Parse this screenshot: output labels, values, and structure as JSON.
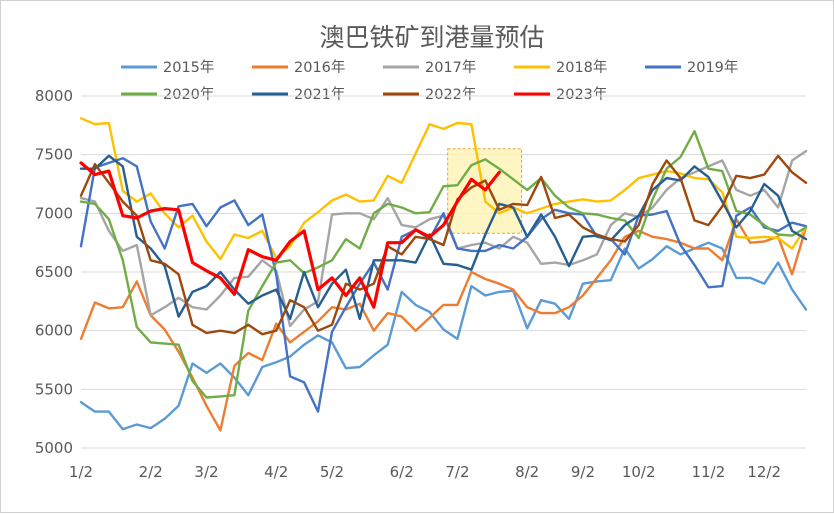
{
  "chart_data": {
    "type": "line",
    "title": "澳巴铁矿到港量预估",
    "xlabel": "",
    "ylabel": "",
    "ylim": [
      5000,
      8000
    ],
    "yticks": [
      5000,
      5500,
      6000,
      6500,
      7000,
      7500,
      8000
    ],
    "xlim": [
      1,
      53
    ],
    "x_ticks": [
      {
        "label": "1/2",
        "week": 1
      },
      {
        "label": "2/2",
        "week": 6
      },
      {
        "label": "3/2",
        "week": 10
      },
      {
        "label": "4/2",
        "week": 15
      },
      {
        "label": "5/2",
        "week": 19
      },
      {
        "label": "6/2",
        "week": 24
      },
      {
        "label": "7/2",
        "week": 28
      },
      {
        "label": "8/2",
        "week": 33
      },
      {
        "label": "9/2",
        "week": 37
      },
      {
        "label": "10/2",
        "week": 41
      },
      {
        "label": "11/2",
        "week": 46
      },
      {
        "label": "12/2",
        "week": 50
      }
    ],
    "grid": true,
    "legend_position": "top",
    "highlight": {
      "x": [
        27.3,
        32.6
      ],
      "y": [
        6830,
        7550
      ],
      "fill": "#fff3b0",
      "stroke": "#e8a33d"
    },
    "series": [
      {
        "name": "2015年",
        "color": "#5b9bd5",
        "values": [
          5390,
          5310,
          5310,
          5160,
          5200,
          5170,
          5250,
          5360,
          5720,
          5640,
          5720,
          5600,
          5450,
          5690,
          5730,
          5780,
          5880,
          5960,
          5900,
          5680,
          5690,
          5790,
          5880,
          6330,
          6220,
          6160,
          6010,
          5930,
          6380,
          6300,
          6330,
          6340,
          6020,
          6260,
          6230,
          6100,
          6400,
          6420,
          6430,
          6700,
          6530,
          6610,
          6720,
          6650,
          6700,
          6750,
          6700,
          6450,
          6450,
          6400,
          6580,
          6350,
          6180
        ]
      },
      {
        "name": "2016年",
        "color": "#ed7d31",
        "values": [
          5930,
          6240,
          6190,
          6200,
          6420,
          6130,
          6010,
          5820,
          5600,
          5360,
          5150,
          5700,
          5810,
          5750,
          6060,
          5900,
          5990,
          6080,
          6200,
          6180,
          6230,
          6000,
          6150,
          6120,
          6000,
          6110,
          6220,
          6220,
          6500,
          6440,
          6400,
          6350,
          6200,
          6150,
          6150,
          6200,
          6300,
          6450,
          6600,
          6800,
          6850,
          6800,
          6780,
          6750,
          6700,
          6700,
          6600,
          6950,
          6750,
          6760,
          6800,
          6480,
          6880
        ]
      },
      {
        "name": "2017年",
        "color": "#a5a5a5",
        "values": [
          7130,
          7100,
          6850,
          6680,
          6730,
          6130,
          6200,
          6280,
          6200,
          6180,
          6300,
          6450,
          6460,
          6600,
          6510,
          6040,
          6180,
          6250,
          6990,
          7000,
          7000,
          6950,
          7130,
          6900,
          6880,
          6950,
          6980,
          6700,
          6730,
          6750,
          6700,
          6800,
          6750,
          6570,
          6580,
          6560,
          6600,
          6650,
          6900,
          7000,
          6970,
          7050,
          7200,
          7300,
          7350,
          7400,
          7450,
          7200,
          7150,
          7200,
          7050,
          7450,
          7530
        ]
      },
      {
        "name": "2018年",
        "color": "#ffc000",
        "values": [
          7810,
          7760,
          7770,
          7190,
          7100,
          7170,
          7000,
          6880,
          6980,
          6760,
          6610,
          6820,
          6790,
          6850,
          6620,
          6720,
          6920,
          7010,
          7110,
          7160,
          7100,
          7110,
          7320,
          7260,
          7510,
          7760,
          7720,
          7770,
          7760,
          7100,
          7000,
          7050,
          7000,
          7040,
          7080,
          7100,
          7120,
          7100,
          7110,
          7200,
          7300,
          7330,
          7360,
          7340,
          7300,
          7290,
          7180,
          6800,
          6790,
          6800,
          6790,
          6700,
          6880
        ]
      },
      {
        "name": "2019年",
        "color": "#4472c4",
        "values": [
          6720,
          7390,
          7430,
          7470,
          7400,
          6930,
          6700,
          7060,
          7080,
          6890,
          7050,
          7110,
          6900,
          6990,
          6480,
          5610,
          5560,
          5310,
          5990,
          6200,
          6400,
          6580,
          6350,
          6800,
          6860,
          6780,
          7000,
          6700,
          6680,
          6680,
          6730,
          6700,
          6800,
          6950,
          7030,
          7000,
          6990,
          6800,
          6780,
          6650,
          6980,
          6990,
          7020,
          6730,
          6560,
          6370,
          6380,
          6980,
          7050,
          6880,
          6850,
          6920,
          6890
        ]
      },
      {
        "name": "2020年",
        "color": "#70ad47",
        "values": [
          7100,
          7080,
          6950,
          6600,
          6030,
          5900,
          5890,
          5880,
          5570,
          5430,
          5440,
          5450,
          6170,
          6380,
          6580,
          6600,
          6490,
          6540,
          6600,
          6780,
          6700,
          7000,
          7080,
          7050,
          7000,
          7010,
          7230,
          7240,
          7410,
          7460,
          7380,
          7290,
          7200,
          7300,
          7150,
          7050,
          7000,
          6990,
          6960,
          6940,
          6790,
          7120,
          7380,
          7480,
          7700,
          7380,
          7360,
          7020,
          6990,
          6900,
          6820,
          6810,
          6880
        ]
      },
      {
        "name": "2021年",
        "color": "#255e91",
        "values": [
          7380,
          7380,
          7490,
          7400,
          6800,
          6700,
          6550,
          6120,
          6330,
          6380,
          6500,
          6350,
          6230,
          6300,
          6350,
          6100,
          6500,
          6200,
          6400,
          6520,
          6100,
          6600,
          6600,
          6600,
          6580,
          6820,
          6570,
          6560,
          6520,
          6820,
          7080,
          7050,
          6800,
          6990,
          6800,
          6550,
          6800,
          6810,
          6770,
          6900,
          6980,
          7200,
          7300,
          7280,
          7400,
          7310,
          7100,
          6880,
          7020,
          7250,
          7150,
          6850,
          6780
        ]
      },
      {
        "name": "2022年",
        "color": "#9e480e",
        "values": [
          7150,
          7420,
          7260,
          7100,
          6980,
          6600,
          6570,
          6480,
          6050,
          5980,
          6000,
          5980,
          6050,
          5970,
          6000,
          6260,
          6200,
          6000,
          6050,
          6400,
          6350,
          6400,
          6720,
          6650,
          6800,
          6780,
          6730,
          7120,
          7220,
          7280,
          7030,
          7080,
          7070,
          7310,
          6960,
          6990,
          6880,
          6820,
          6780,
          6760,
          6900,
          7250,
          7450,
          7300,
          6940,
          6900,
          7060,
          7320,
          7300,
          7330,
          7490,
          7350,
          7260
        ]
      },
      {
        "name": "2023年",
        "color": "#ff0000",
        "values": [
          7430,
          7330,
          7360,
          6980,
          6960,
          7020,
          7040,
          7030,
          6580,
          6510,
          6450,
          6310,
          6690,
          6630,
          6600,
          6760,
          6850,
          6350,
          6450,
          6300,
          6450,
          6200,
          6750,
          6750,
          6860,
          6800,
          6900,
          7100,
          7290,
          7200,
          7350
        ]
      }
    ]
  }
}
